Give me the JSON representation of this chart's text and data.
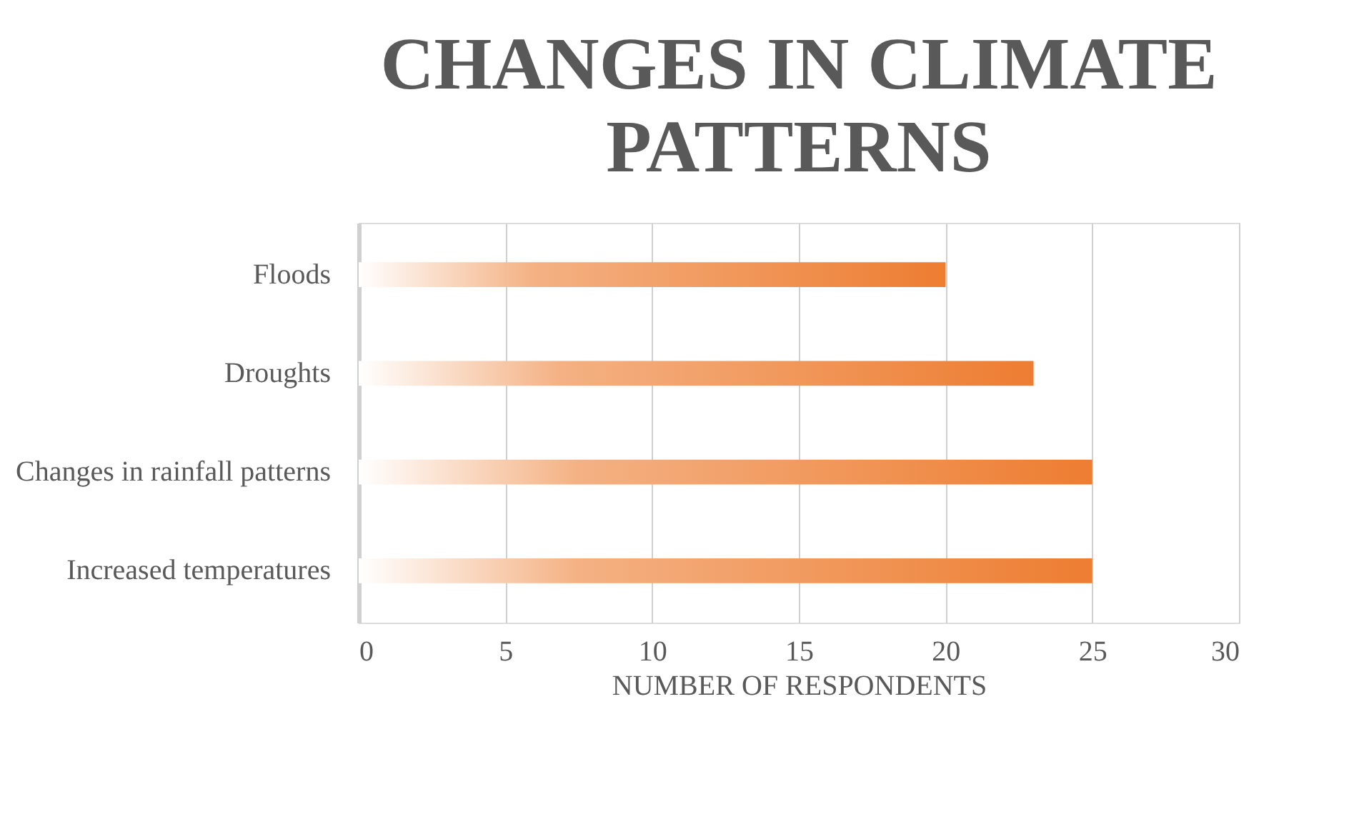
{
  "chart_data": {
    "type": "bar",
    "orientation": "horizontal",
    "title": "CHANGES IN CLIMATE PATTERNS",
    "categories": [
      "Floods",
      "Droughts",
      "Changes in rainfall patterns",
      "Increased temperatures"
    ],
    "values": [
      20,
      23,
      25,
      25
    ],
    "color": "#ed7d31",
    "xlabel": "NUMBER OF RESPONDENTS",
    "xlim": [
      0,
      30
    ],
    "xticks": [
      0,
      5,
      10,
      15,
      20,
      25,
      30
    ],
    "grid": "x"
  }
}
